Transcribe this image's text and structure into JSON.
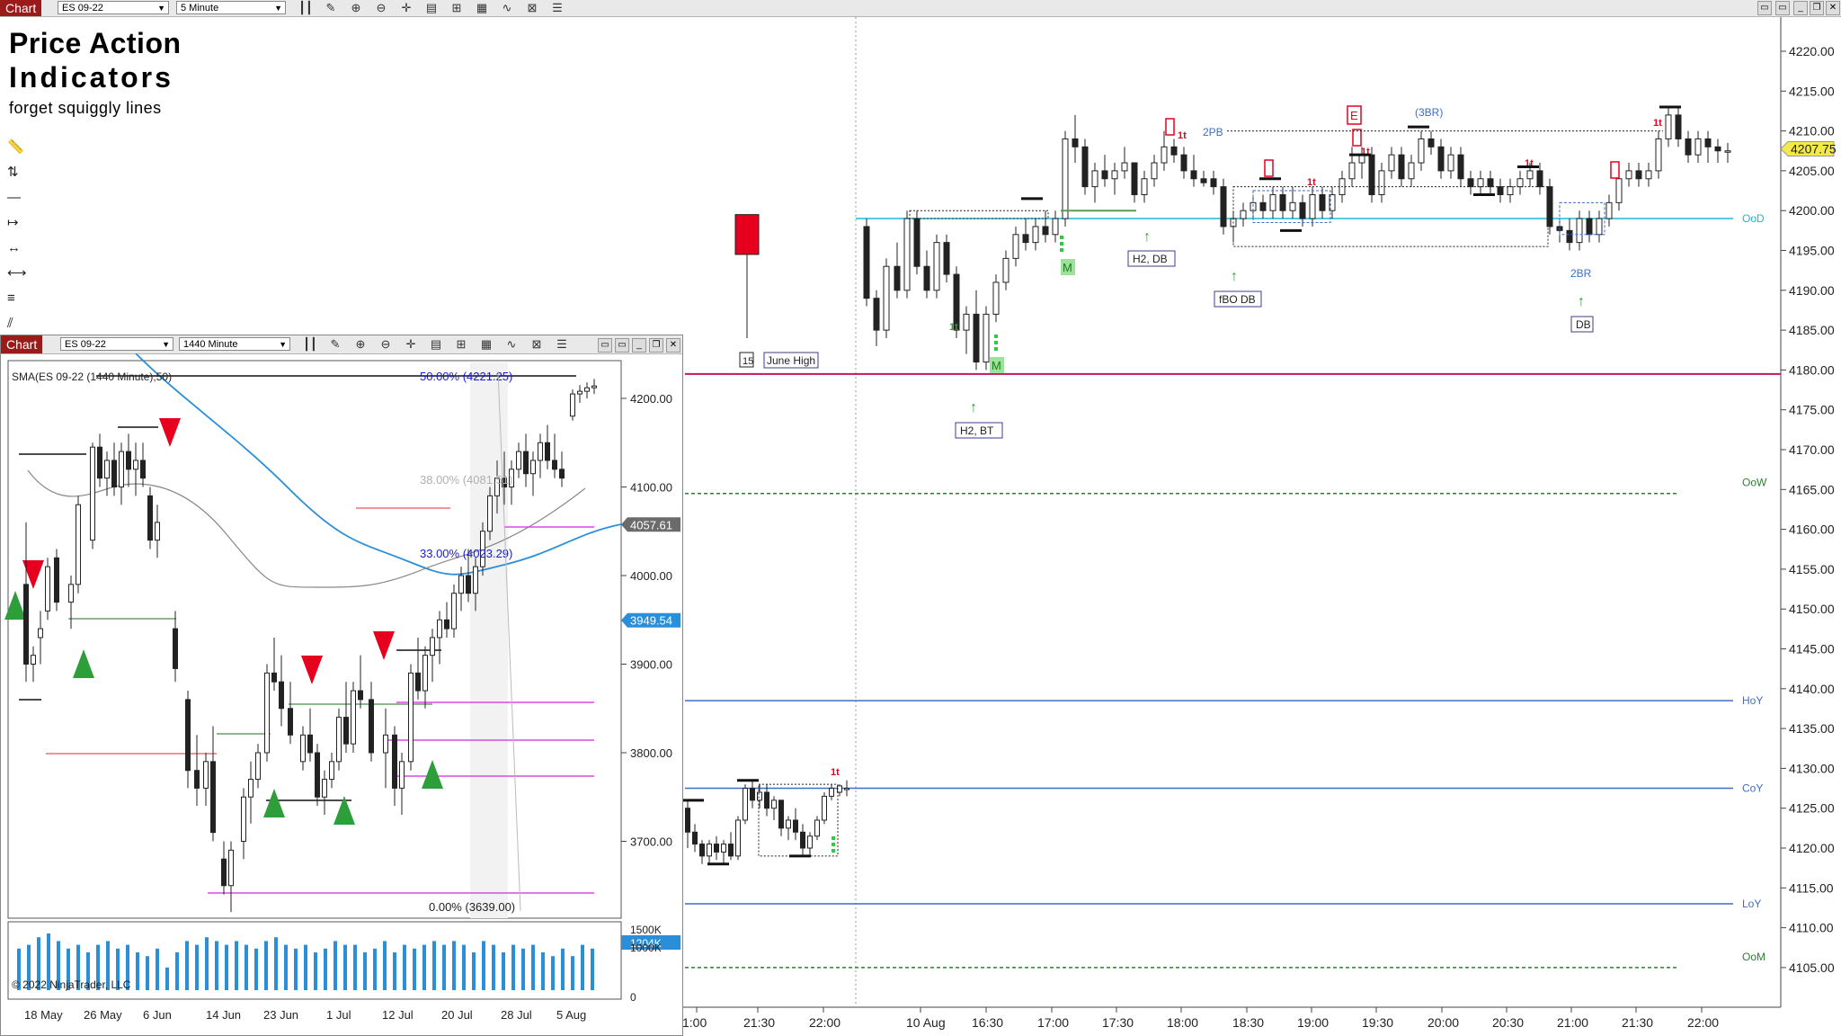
{
  "main_toolbar": {
    "tab": "Chart",
    "instrument": "ES 09-22",
    "interval": "5 Minute"
  },
  "header": {
    "title_line1": "Price Action",
    "title_line2": "Indicators",
    "subtitle": "forget squiggly lines"
  },
  "main_chart": {
    "price_axis": [
      "4220.00",
      "4215.00",
      "4210.00",
      "4205.00",
      "4200.00",
      "4195.00",
      "4190.00",
      "4185.00",
      "4180.00",
      "4175.00",
      "4170.00",
      "4165.00",
      "4160.00",
      "4155.00",
      "4150.00",
      "4145.00",
      "4140.00",
      "4135.00",
      "4130.00",
      "4125.00",
      "4120.00",
      "4115.00",
      "4110.00",
      "4105.00"
    ],
    "time_axis": [
      "1:00",
      "21:30",
      "22:00",
      "10 Aug",
      "16:30",
      "17:00",
      "17:30",
      "18:00",
      "18:30",
      "19:00",
      "19:30",
      "20:00",
      "20:30",
      "21:00",
      "21:30",
      "22:00"
    ],
    "current_price": "4207.75",
    "levels": [
      {
        "label": "OoD",
        "price": 4199.0,
        "color": "#1fb5d6"
      },
      {
        "label": "OoW",
        "price": 4164.5,
        "color": "#2e7d32"
      },
      {
        "label": "HoY",
        "price": 4138.5,
        "color": "#3b6fc4"
      },
      {
        "label": "CoY",
        "price": 4127.5,
        "color": "#3b6fc4"
      },
      {
        "label": "LoY",
        "price": 4113.0,
        "color": "#3b6fc4"
      },
      {
        "label": "OoM",
        "price": 4105.0,
        "color": "#2e7d32"
      }
    ],
    "june_high": {
      "label": "June High",
      "price": 4179.5,
      "color": "#c2185b"
    },
    "annotations": [
      "H2, BT",
      "H2, DB",
      "fBO DB",
      "2PB",
      "(3BR)",
      "2BR",
      "DB",
      "M",
      "M",
      "15",
      "1t",
      "E"
    ],
    "accent_colors": {
      "bear": "#e6001e",
      "bull": "#2e9e3a",
      "blue": "#3b6fc4"
    }
  },
  "inset": {
    "tab": "Chart",
    "instrument": "ES 09-22",
    "interval": "1440 Minute",
    "sma_label": "SMA(ES 09-22 (1440 Minute),50)",
    "fib_levels": [
      {
        "label": "50.00% (4221.25)",
        "price": 4221.25
      },
      {
        "label": "38.00% (4081.51)",
        "price": 4081.51
      },
      {
        "label": "33.00% (4023.29)",
        "price": 4023.29
      },
      {
        "label": "0.00% (3639.00)",
        "price": 3639.0
      }
    ],
    "price_axis": [
      "4200.00",
      "4100.00",
      "4000.00",
      "3900.00",
      "3800.00",
      "3700.00"
    ],
    "price_tags": [
      {
        "value": "4057.61",
        "color": "#6b6b6b"
      },
      {
        "value": "3949.54",
        "color": "#2a8fd8"
      }
    ],
    "volume_axis": [
      "1500K",
      "1204K",
      "1000K",
      "0"
    ],
    "date_axis": [
      "18 May",
      "26 May",
      "6 Jun",
      "14 Jun",
      "23 Jun",
      "1 Jul",
      "12 Jul",
      "20 Jul",
      "28 Jul",
      "5 Aug"
    ],
    "copyright": "© 2022 NinjaTrader, LLC"
  }
}
